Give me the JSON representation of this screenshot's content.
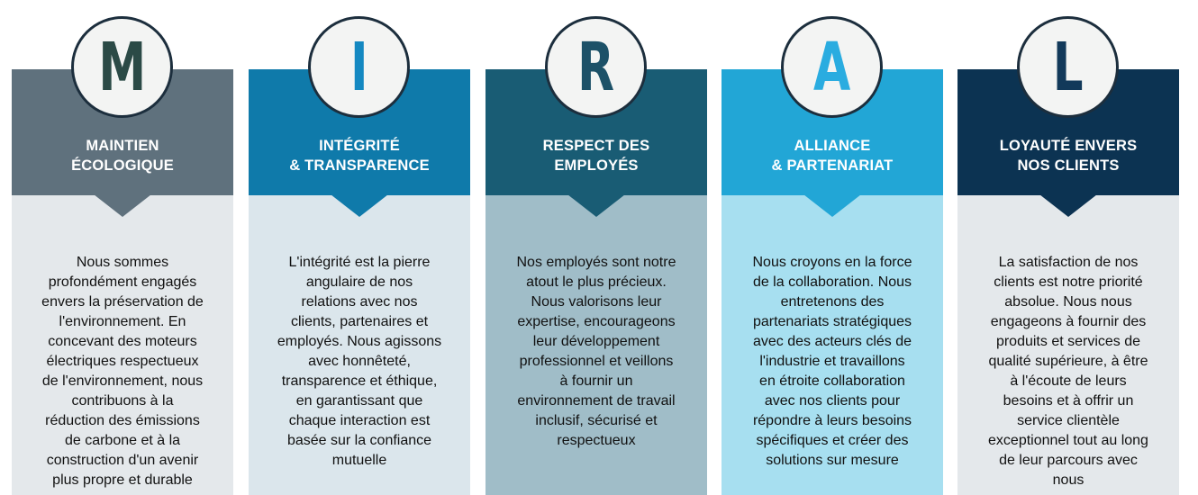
{
  "pillars": [
    {
      "letter": "M",
      "title_lines": [
        "MAINTIEN",
        "ÉCOLOGIQUE"
      ],
      "description_lines": [
        "Nous sommes",
        "profondément engagés",
        "envers la préservation de",
        "l'environnement. En",
        "concevant des moteurs",
        "électriques respectueux",
        "de l'environnement, nous",
        "contribuons à la",
        "réduction des émissions",
        "de carbone et à la",
        "construction d'un avenir",
        "plus propre et durable"
      ],
      "colors": {
        "header": "#5f717d",
        "body": "#e4e8eb",
        "letter": "#2b4a46"
      }
    },
    {
      "letter": "I",
      "title_lines": [
        "INTÉGRITÉ",
        "& TRANSPARENCE"
      ],
      "description_lines": [
        "L'intégrité est la pierre",
        "angulaire de nos",
        "relations avec nos",
        "clients, partenaires et",
        "employés. Nous agissons",
        "avec honnêteté,",
        "transparence et éthique,",
        "en garantissant que",
        "chaque interaction est",
        "basée sur la confiance",
        "mutuelle"
      ],
      "colors": {
        "header": "#0f7aaa",
        "body": "#dbe6ec",
        "letter": "#1488c1"
      }
    },
    {
      "letter": "R",
      "title_lines": [
        "RESPECT DES",
        "EMPLOYÉS"
      ],
      "description_lines": [
        "Nos employés sont notre",
        "atout le plus précieux.",
        "Nous valorisons leur",
        "expertise, encourageons",
        "leur développement",
        "professionnel et veillons",
        "à fournir un",
        "environnement de travail",
        "inclusif, sécurisé et",
        "respectueux"
      ],
      "colors": {
        "header": "#195c74",
        "body": "#a0bdc8",
        "letter": "#1c5168"
      }
    },
    {
      "letter": "A",
      "title_lines": [
        "ALLIANCE",
        "& PARTENARIAT"
      ],
      "description_lines": [
        "Nous croyons en la force",
        "de la collaboration. Nous",
        "entretenons des",
        "partenariats stratégiques",
        "avec des acteurs clés de",
        "l'industrie et travaillons",
        "en étroite collaboration",
        "avec nos clients pour",
        "répondre à leurs besoins",
        "spécifiques et créer des",
        "solutions sur mesure"
      ],
      "colors": {
        "header": "#22a6d6",
        "body": "#a7dff0",
        "letter": "#2aace0"
      }
    },
    {
      "letter": "L",
      "title_lines": [
        "LOYAUTÉ ENVERS",
        "NOS CLIENTS"
      ],
      "description_lines": [
        "La satisfaction de nos",
        "clients est notre priorité",
        "absolue. Nous nous",
        "engageons à fournir des",
        "produits et services de",
        "qualité supérieure, à être",
        "à l'écoute de leurs",
        "besoins et à offrir un",
        "service clientèle",
        "exceptionnel tout au long",
        "de leur parcours avec",
        "nous"
      ],
      "colors": {
        "header": "#0c3352",
        "body": "#e4e8eb",
        "letter": "#12395a"
      }
    }
  ]
}
